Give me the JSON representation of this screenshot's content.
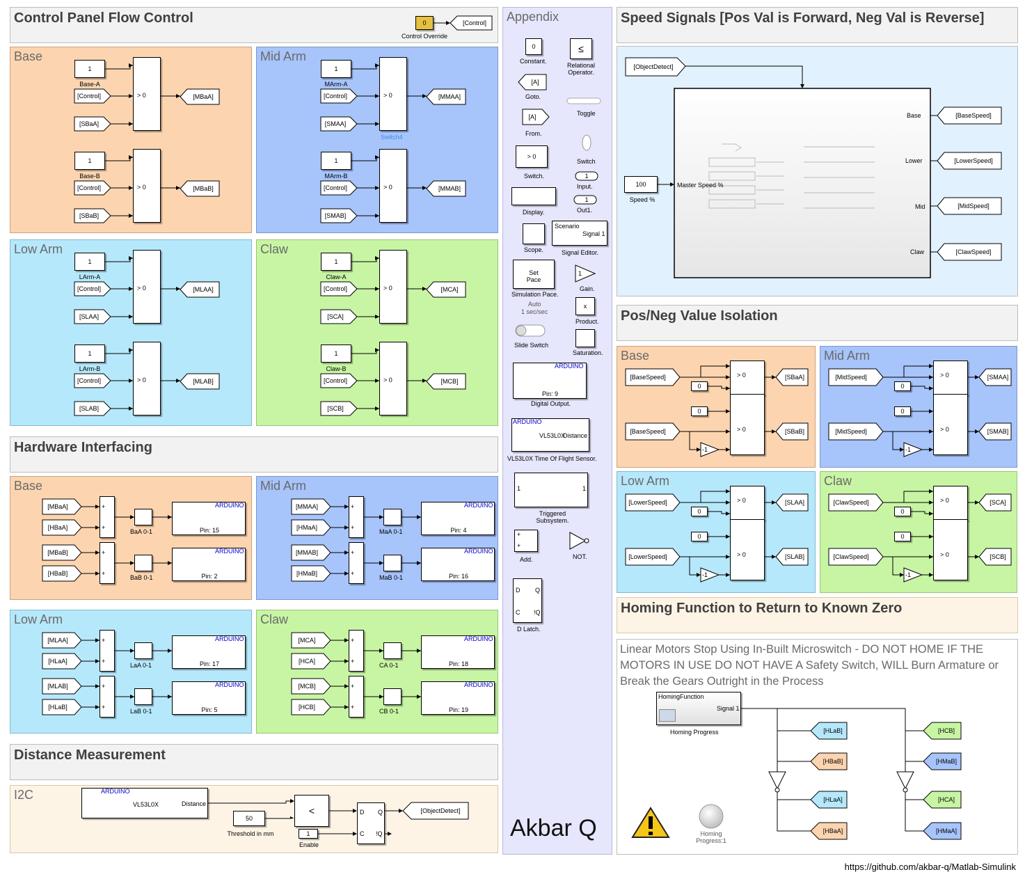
{
  "control_panel": {
    "title": "Control Panel Flow Control",
    "override_value": "0",
    "override_label": "Control Override",
    "override_goto": "[Control]",
    "panels": [
      {
        "title": "Base",
        "color": "orange",
        "rows": [
          {
            "const": "1",
            "const_label": "Base-A",
            "ctrl": "[Control]",
            "in": "[SBaA]",
            "out": "[MBaA]",
            "sw": "> 0"
          },
          {
            "const": "1",
            "const_label": "Base-B",
            "ctrl": "[Control]",
            "in": "[SBaB]",
            "out": "[MBaB]",
            "sw": "> 0"
          }
        ]
      },
      {
        "title": "Mid Arm",
        "color": "blue",
        "rows": [
          {
            "const": "1",
            "const_label": "MArm-A",
            "ctrl": "[Control]",
            "in": "[SMAA]",
            "out": "[MMAA]",
            "sw": "> 0",
            "extra": "Switch4"
          },
          {
            "const": "1",
            "const_label": "MArm-B",
            "ctrl": "[Control]",
            "in": "[SMAB]",
            "out": "[MMAB]",
            "sw": "> 0"
          }
        ]
      },
      {
        "title": "Low Arm",
        "color": "cyan",
        "rows": [
          {
            "const": "1",
            "const_label": "LArm-A",
            "ctrl": "[Control]",
            "in": "[SLAA]",
            "out": "[MLAA]",
            "sw": "> 0"
          },
          {
            "const": "1",
            "const_label": "LArm-B",
            "ctrl": "[Control]",
            "in": "[SLAB]",
            "out": "[MLAB]",
            "sw": "> 0"
          }
        ]
      },
      {
        "title": "Claw",
        "color": "green",
        "rows": [
          {
            "const": "1",
            "const_label": "Claw-A",
            "ctrl": "[Control]",
            "in": "[SCA]",
            "out": "[MCA]",
            "sw": "> 0"
          },
          {
            "const": "1",
            "const_label": "Claw-B",
            "ctrl": "[Control]",
            "in": "[SCB]",
            "out": "[MCB]",
            "sw": "> 0"
          }
        ]
      }
    ]
  },
  "hardware": {
    "title": "Hardware Interfacing",
    "panels": [
      {
        "title": "Base",
        "color": "orange",
        "rows": [
          {
            "in1": "[MBaA]",
            "in2": "[HBaA]",
            "sat": "BaA 0-1",
            "pin": "Pin: 15"
          },
          {
            "in1": "[MBaB]",
            "in2": "[HBaB]",
            "sat": "BaB 0-1",
            "pin": "Pin: 2"
          }
        ]
      },
      {
        "title": "Mid Arm",
        "color": "blue",
        "rows": [
          {
            "in1": "[MMAA]",
            "in2": "[HMaA]",
            "sat": "MaA 0-1",
            "pin": "Pin: 4"
          },
          {
            "in1": "[MMAB]",
            "in2": "[HMaB]",
            "sat": "MaB 0-1",
            "pin": "Pin: 16"
          }
        ]
      },
      {
        "title": "Low Arm",
        "color": "cyan",
        "rows": [
          {
            "in1": "[MLAA]",
            "in2": "[HLaA]",
            "sat": "LaA 0-1",
            "pin": "Pin: 17"
          },
          {
            "in1": "[MLAB]",
            "in2": "[HLaB]",
            "sat": "LaB 0-1",
            "pin": "Pin: 5"
          }
        ]
      },
      {
        "title": "Claw",
        "color": "green",
        "rows": [
          {
            "in1": "[MCA]",
            "in2": "[HCA]",
            "sat": "CA 0-1",
            "pin": "Pin: 18"
          },
          {
            "in1": "[MCB]",
            "in2": "[HCB]",
            "sat": "CB 0-1",
            "pin": "Pin: 19"
          }
        ]
      }
    ],
    "arduino": "ARDUINO",
    "plus": "+"
  },
  "distance": {
    "title": "Distance Measurement",
    "area": "I2C",
    "sensor_name": "VL53L0X",
    "sensor_out": "Distance",
    "arduino": "ARDUINO",
    "op": "<",
    "threshold": "50",
    "threshold_label": "Threshold in mm",
    "enable": "1",
    "enable_label": "Enable",
    "latch_d": "D",
    "latch_c": "C",
    "latch_q": "Q",
    "latch_nq": "!Q",
    "goto": "[ObjectDetect]"
  },
  "appendix": {
    "title": "Appendix",
    "author": "Akbar Q",
    "items": {
      "constant": "0",
      "constant_label": "Constant.",
      "relop": "≤",
      "relop_label": "Relational Operator.",
      "goto": "[A]",
      "goto_label": "Goto.",
      "toggle_label": "Toggle",
      "from": "[A]",
      "from_label": "From.",
      "switch_val": "> 0",
      "switch_label": "Switch.",
      "switch2_label": "Switch",
      "input_val": "1",
      "input_label": "Input.",
      "display_label": "Display.",
      "out_val": "1",
      "out_label": "Out1.",
      "scope_label": "Scope.",
      "sig_title": "Scenario",
      "sig_out": "Signal 1",
      "sig_label": "Signal Editor.",
      "pace_text": "Set Pace",
      "pace_label": "Simulation Pace.",
      "pace_sub": "Auto",
      "pace_rate": "1 sec/sec",
      "gain_val": "1",
      "gain_label": "Gain.",
      "product_val": "x",
      "product_label": "Product.",
      "slide_label": "Slide Switch",
      "sat_label": "Saturation.",
      "arduino": "ARDUINO",
      "dout_pin": "Pin: 9",
      "dout_label": "Digital Output.",
      "tof_name": "VL53L0X",
      "tof_out": "Distance",
      "tof_label": "VL53L0X Time Of Flight Sensor.",
      "trig_in": "1",
      "trig_out": "1",
      "trig_label": "Triggered Subsystem.",
      "add_label": "Add.",
      "not_label": "NOT.",
      "latch_label": "D Latch.",
      "latch_d": "D",
      "latch_q": "Q",
      "latch_c": "C",
      "latch_nq": "!Q",
      "plus": "+"
    }
  },
  "speed": {
    "title": "Speed Signals [Pos Val is Forward, Neg Val is Reverse]",
    "from": "[ObjectDetect]",
    "speed_value": "100",
    "speed_label": "Speed %",
    "master_port": "Master Speed %",
    "ports": [
      {
        "name": "Base",
        "goto": "[BaseSpeed]"
      },
      {
        "name": "Lower",
        "goto": "[LowerSpeed]"
      },
      {
        "name": "Mid",
        "goto": "[MidSpeed]"
      },
      {
        "name": "Claw",
        "goto": "[ClawSpeed]"
      }
    ]
  },
  "isolation": {
    "title": "Pos/Neg Value Isolation",
    "panels": [
      {
        "title": "Base",
        "color": "orange",
        "src": "[BaseSpeed]",
        "outA": "[SBaA]",
        "outB": "[SBaB]"
      },
      {
        "title": "Mid Arm",
        "color": "blue",
        "src": "[MidSpeed]",
        "outA": "[SMAA]",
        "outB": "[SMAB]"
      },
      {
        "title": "Low Arm",
        "color": "cyan",
        "src": "[LowerSpeed]",
        "outA": "[SLAA]",
        "outB": "[SLAB]"
      },
      {
        "title": "Claw",
        "color": "green",
        "src": "[ClawSpeed]",
        "outA": "[SCA]",
        "outB": "[SCB]"
      }
    ],
    "zero": "0",
    "gain": "-1",
    "sw": "> 0"
  },
  "homing": {
    "title": "Homing Function to Return to Known Zero",
    "warning": "Linear Motors Stop Using In-Built Microswitch - DO NOT HOME IF THE MOTORS IN USE DO NOT HAVE A Safety Switch, WILL Burn Armature or Break the Gears Outright in the Process",
    "block_title": "HomingFunction",
    "block_out": "Signal 1",
    "block_label": "Homing Progress",
    "lamp_label": "Homing Progress:1",
    "left_tags": [
      "[HLaB]",
      "[HBaB]",
      "[HLaA]",
      "[HBaA]"
    ],
    "right_tags": [
      "[HCB]",
      "[HMaB]",
      "[HCA]",
      "[HMaA]"
    ]
  },
  "footer": {
    "url": "https://github.com/akbar-q/Matlab-Simulink"
  },
  "colors": {
    "orange": "#fcd5b0",
    "blue": "#a7c4fb",
    "cyan": "#b6e8fb",
    "green": "#c8f5a3",
    "lavender": "#e6e6fc",
    "cream": "#fdf4e6",
    "gold": "#e8c040"
  }
}
